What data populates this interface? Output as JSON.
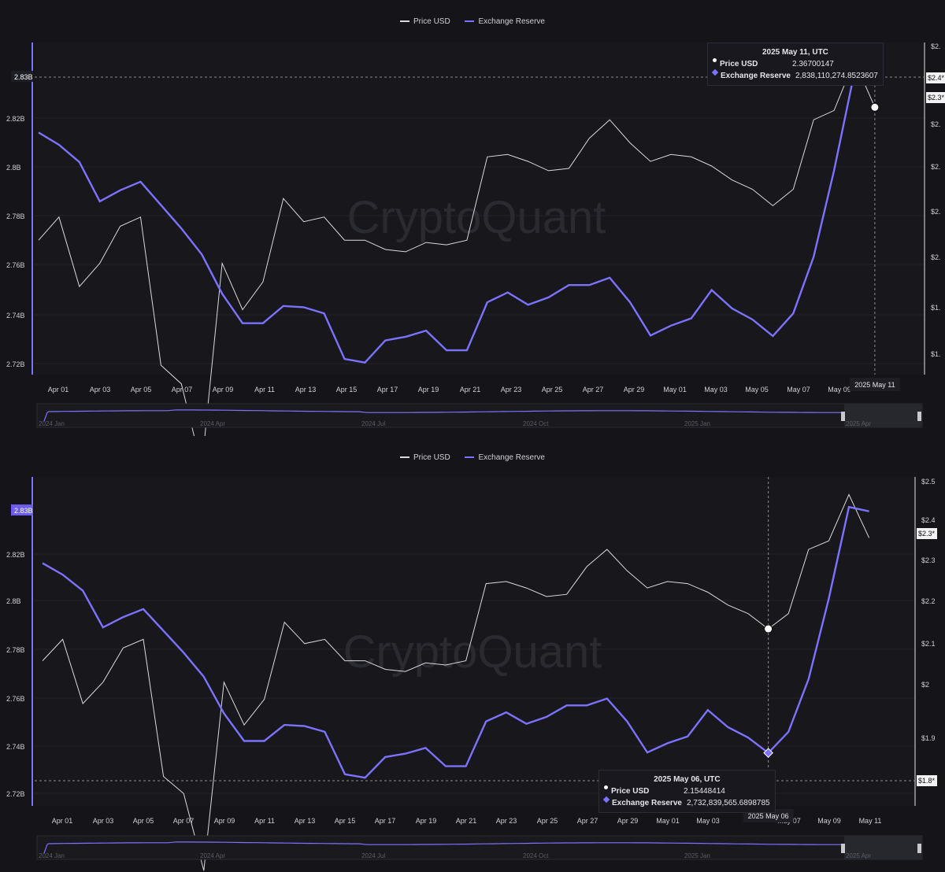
{
  "legend": {
    "price_label": "Price USD",
    "reserve_label": "Exchange Reserve"
  },
  "watermark": "CryptoQuant",
  "colors": {
    "background": "#141419",
    "price": "#d9d9de",
    "reserve": "#7d72ff",
    "grid": "#23232a"
  },
  "top": {
    "tooltip": {
      "date": "2025 May 11, UTC",
      "price_name": "Price USD",
      "price_value": "2.36700147",
      "reserve_name": "Exchange Reserve",
      "reserve_value": "2,838,110,274.8523607"
    },
    "crosshair_date": "2025 May 11",
    "left_badge": "2.83B",
    "right_badges": [
      "$2.4*",
      "$2.3*"
    ],
    "left_ticks": [
      "2.82B",
      "2.8B",
      "2.78B",
      "2.76B",
      "2.74B",
      "2.72B"
    ],
    "right_ticks": [
      "$2.",
      "$2.",
      "$2.",
      "$2.",
      "$2.",
      "$2.",
      "$1.",
      "$1."
    ],
    "x_labels": [
      "Apr 01",
      "Apr 03",
      "Apr 05",
      "Apr 07",
      "Apr 09",
      "Apr 11",
      "Apr 13",
      "Apr 15",
      "Apr 17",
      "Apr 19",
      "Apr 21",
      "Apr 23",
      "Apr 25",
      "Apr 27",
      "Apr 29",
      "May 01",
      "May 03",
      "May 05",
      "May 07",
      "May 09"
    ],
    "nav_labels": [
      "2024 Jan",
      "2024 Apr",
      "2024 Jul",
      "2024 Oct",
      "2025 Jan",
      "2025 Apr"
    ]
  },
  "bottom": {
    "tooltip": {
      "date": "2025 May 06, UTC",
      "price_name": "Price USD",
      "price_value": "2.15448414",
      "reserve_name": "Exchange Reserve",
      "reserve_value": "2,732,839,565.6898785"
    },
    "crosshair_date": "2025 May 06",
    "left_badge": "2.83B",
    "left_badge_low": "2.72B",
    "right_badges": [
      "$2.3*",
      "$1.8*"
    ],
    "left_ticks": [
      "2.82B",
      "2.8B",
      "2.78B",
      "2.76B",
      "2.74B",
      "2.72B"
    ],
    "right_ticks": [
      "$2.5",
      "$2.4",
      "$2.3",
      "$2.2",
      "$2.1",
      "$2",
      "$1.9",
      "$1.8"
    ],
    "x_labels": [
      "Apr 01",
      "Apr 03",
      "Apr 05",
      "Apr 07",
      "Apr 09",
      "Apr 11",
      "Apr 13",
      "Apr 15",
      "Apr 17",
      "Apr 19",
      "Apr 21",
      "Apr 23",
      "Apr 25",
      "Apr 27",
      "Apr 29",
      "May 01",
      "May 03",
      "May 07",
      "May 09",
      "May 11"
    ],
    "nav_labels": [
      "2024 Jan",
      "2024 Apr",
      "2024 Jul",
      "2024 Oct",
      "2025 Jan",
      "2025 Apr"
    ]
  },
  "chart_data": [
    {
      "type": "line",
      "x": [
        "2025-03-31",
        "2025-04-01",
        "2025-04-02",
        "2025-04-03",
        "2025-04-04",
        "2025-04-05",
        "2025-04-06",
        "2025-04-07",
        "2025-04-08",
        "2025-04-09",
        "2025-04-10",
        "2025-04-11",
        "2025-04-12",
        "2025-04-13",
        "2025-04-14",
        "2025-04-15",
        "2025-04-16",
        "2025-04-17",
        "2025-04-18",
        "2025-04-19",
        "2025-04-20",
        "2025-04-21",
        "2025-04-22",
        "2025-04-23",
        "2025-04-24",
        "2025-04-25",
        "2025-04-26",
        "2025-04-27",
        "2025-04-28",
        "2025-04-29",
        "2025-04-30",
        "2025-05-01",
        "2025-05-02",
        "2025-05-03",
        "2025-05-04",
        "2025-05-05",
        "2025-05-06",
        "2025-05-07",
        "2025-05-08",
        "2025-05-09",
        "2025-05-10",
        "2025-05-11"
      ],
      "series": [
        {
          "name": "Exchange Reserve",
          "axis": "left",
          "values": [
            2.8155,
            2.8105,
            2.8035,
            2.7875,
            2.792,
            2.7955,
            2.786,
            2.7765,
            2.766,
            2.75,
            2.738,
            2.738,
            2.745,
            2.7445,
            2.742,
            2.7235,
            2.722,
            2.731,
            2.7325,
            2.735,
            2.727,
            2.727,
            2.7465,
            2.7505,
            2.7455,
            2.7485,
            2.7535,
            2.7535,
            2.7565,
            2.7465,
            2.733,
            2.737,
            2.74,
            2.7515,
            2.744,
            2.7395,
            2.7328,
            2.742,
            2.765,
            2.8,
            2.84,
            2.8381
          ]
        },
        {
          "name": "Price USD",
          "axis": "right",
          "values": [
            2.08,
            2.13,
            1.98,
            2.03,
            2.11,
            2.13,
            1.81,
            1.77,
            1.59,
            2.03,
            1.93,
            1.99,
            2.17,
            2.12,
            2.13,
            2.08,
            2.08,
            2.06,
            2.055,
            2.075,
            2.07,
            2.08,
            2.26,
            2.265,
            2.25,
            2.23,
            2.235,
            2.3,
            2.34,
            2.29,
            2.25,
            2.265,
            2.26,
            2.24,
            2.21,
            2.19,
            2.1545,
            2.19,
            2.34,
            2.36,
            2.468,
            2.367
          ]
        }
      ],
      "left_ylim": [
        2.72,
        2.838
      ],
      "right_ylim": [
        1.8,
        2.5
      ],
      "xlabel": "",
      "ylabel": "",
      "grid": true,
      "legend_position": "top-center"
    }
  ]
}
